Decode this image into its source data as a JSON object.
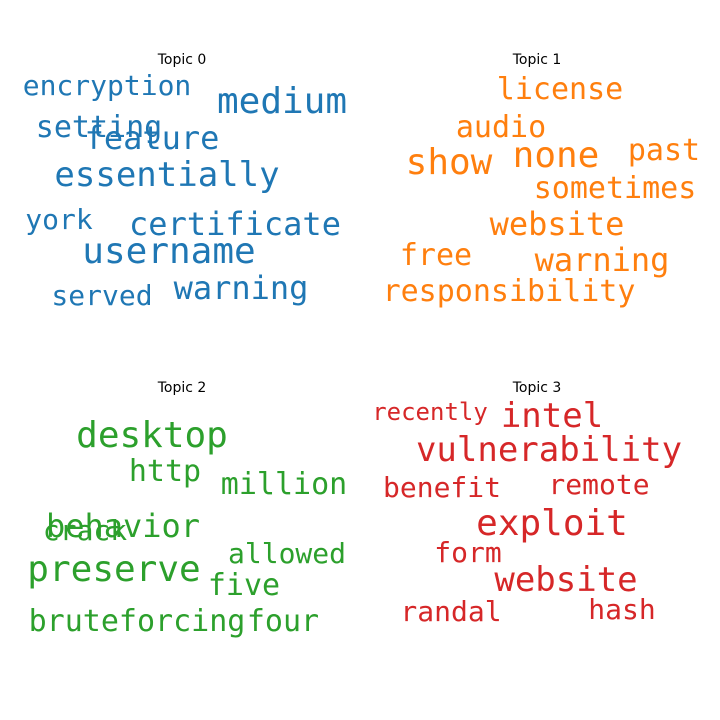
{
  "chart_data": {
    "type": "wordcloud",
    "panels": [
      {
        "title": "Topic 0",
        "color": "#1f77b4",
        "words": [
          "encryption",
          "medium",
          "setting",
          "feature",
          "essentially",
          "york",
          "certificate",
          "username",
          "served",
          "warning"
        ]
      },
      {
        "title": "Topic 1",
        "color": "#ff7f0e",
        "words": [
          "license",
          "audio",
          "show",
          "none",
          "past",
          "sometimes",
          "website",
          "free",
          "warning",
          "responsibility"
        ]
      },
      {
        "title": "Topic 2",
        "color": "#2ca02c",
        "words": [
          "desktop",
          "http",
          "million",
          "behavior",
          "crack",
          "allowed",
          "preserve",
          "five",
          "bruteforcing",
          "four"
        ]
      },
      {
        "title": "Topic 3",
        "color": "#d62728",
        "words": [
          "recently",
          "intel",
          "vulnerability",
          "benefit",
          "remote",
          "exploit",
          "form",
          "website",
          "randal",
          "hash"
        ]
      }
    ]
  }
}
